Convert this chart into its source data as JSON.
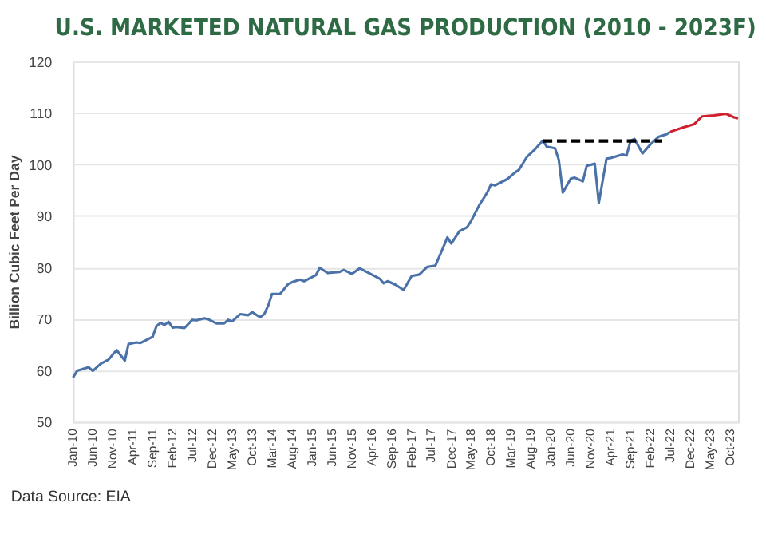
{
  "chart_data": {
    "type": "line",
    "title": "U.S. MARKETED NATURAL GAS PRODUCTION (2010 - 2023F)",
    "ylabel": "Billion Cubic Feet Per Day",
    "annotations": [
      "Data Source: EIA"
    ],
    "ylim": [
      50,
      120
    ],
    "yticks": [
      50,
      60,
      70,
      80,
      90,
      100,
      110,
      120
    ],
    "grid": "y",
    "marker": "none",
    "line_style": "solid",
    "xlim": [
      "2010-01",
      "2023-12"
    ],
    "xticks": [
      {
        "value": "2010-01",
        "label": "Jan-10"
      },
      {
        "value": "2010-06",
        "label": "Jun-10"
      },
      {
        "value": "2010-11",
        "label": "Nov-10"
      },
      {
        "value": "2011-04",
        "label": "Apr-11"
      },
      {
        "value": "2011-09",
        "label": "Sep-11"
      },
      {
        "value": "2012-02",
        "label": "Feb-12"
      },
      {
        "value": "2012-07",
        "label": "Jul-12"
      },
      {
        "value": "2012-12",
        "label": "Dec-12"
      },
      {
        "value": "2013-05",
        "label": "May-13"
      },
      {
        "value": "2013-10",
        "label": "Oct-13"
      },
      {
        "value": "2014-03",
        "label": "Mar-14"
      },
      {
        "value": "2014-08",
        "label": "Aug-14"
      },
      {
        "value": "2015-01",
        "label": "Jan-15"
      },
      {
        "value": "2015-06",
        "label": "Jun-15"
      },
      {
        "value": "2015-11",
        "label": "Nov-15"
      },
      {
        "value": "2016-04",
        "label": "Apr-16"
      },
      {
        "value": "2016-09",
        "label": "Sep-16"
      },
      {
        "value": "2017-02",
        "label": "Feb-17"
      },
      {
        "value": "2017-07",
        "label": "Jul-17"
      },
      {
        "value": "2017-12",
        "label": "Dec-17"
      },
      {
        "value": "2018-05",
        "label": "May-18"
      },
      {
        "value": "2018-10",
        "label": "Oct-18"
      },
      {
        "value": "2019-03",
        "label": "Mar-19"
      },
      {
        "value": "2019-08",
        "label": "Aug-19"
      },
      {
        "value": "2020-01",
        "label": "Jan-20"
      },
      {
        "value": "2020-06",
        "label": "Jun-20"
      },
      {
        "value": "2020-11",
        "label": "Nov-20"
      },
      {
        "value": "2021-04",
        "label": "Apr-21"
      },
      {
        "value": "2021-09",
        "label": "Sep-21"
      },
      {
        "value": "2022-02",
        "label": "Feb-22"
      },
      {
        "value": "2022-07",
        "label": "Jul-22"
      },
      {
        "value": "2022-12",
        "label": "Dec-22"
      },
      {
        "value": "2023-05",
        "label": "May-23"
      },
      {
        "value": "2023-10",
        "label": "Oct-23"
      }
    ],
    "series": [
      {
        "color": "#4a72a8",
        "x": [
          "2010-01",
          "2010-02",
          "2010-05",
          "2010-06",
          "2010-08",
          "2010-10",
          "2010-11",
          "2010-12",
          "2011-02",
          "2011-03",
          "2011-05",
          "2011-06",
          "2011-08",
          "2011-09",
          "2011-10",
          "2011-11",
          "2011-12",
          "2012-01",
          "2012-02",
          "2012-03",
          "2012-05",
          "2012-07",
          "2012-08",
          "2012-10",
          "2012-11",
          "2013-01",
          "2013-03",
          "2013-04",
          "2013-05",
          "2013-07",
          "2013-09",
          "2013-10",
          "2013-12",
          "2014-01",
          "2014-02",
          "2014-03",
          "2014-05",
          "2014-07",
          "2014-08",
          "2014-10",
          "2014-11",
          "2015-02",
          "2015-03",
          "2015-05",
          "2015-08",
          "2015-09",
          "2015-11",
          "2016-01",
          "2016-04",
          "2016-06",
          "2016-07",
          "2016-08",
          "2016-10",
          "2016-12",
          "2017-02",
          "2017-04",
          "2017-06",
          "2017-08",
          "2017-10",
          "2017-11",
          "2017-12",
          "2018-02",
          "2018-04",
          "2018-05",
          "2018-07",
          "2018-09",
          "2018-10",
          "2018-11",
          "2019-02",
          "2019-04",
          "2019-05",
          "2019-07",
          "2019-09",
          "2019-11",
          "2019-12",
          "2020-02",
          "2020-03",
          "2020-04",
          "2020-06",
          "2020-07",
          "2020-09",
          "2020-10",
          "2020-12",
          "2021-01",
          "2021-03",
          "2021-04",
          "2021-07",
          "2021-08",
          "2021-09",
          "2021-10",
          "2021-12",
          "2022-02",
          "2022-04",
          "2022-06",
          "2022-07"
        ],
        "values": [
          58.6,
          59.9,
          60.6,
          59.9,
          61.3,
          62.1,
          63.1,
          63.9,
          61.9,
          65.1,
          65.4,
          65.3,
          66.1,
          66.5,
          68.6,
          69.2,
          68.8,
          69.4,
          68.3,
          68.4,
          68.2,
          69.8,
          69.7,
          70.1,
          69.9,
          69.1,
          69.1,
          69.8,
          69.5,
          70.9,
          70.7,
          71.3,
          70.3,
          70.9,
          72.6,
          74.8,
          74.8,
          76.7,
          77.1,
          77.6,
          77.3,
          78.5,
          79.9,
          78.9,
          79.1,
          79.5,
          78.7,
          79.8,
          78.6,
          77.8,
          76.9,
          77.3,
          76.6,
          75.6,
          78.3,
          78.6,
          80.1,
          80.3,
          83.9,
          85.8,
          84.6,
          87.0,
          87.8,
          89.0,
          92.0,
          94.5,
          96.1,
          95.9,
          97.1,
          98.4,
          98.9,
          101.4,
          102.9,
          104.6,
          103.4,
          103.1,
          100.9,
          94.5,
          97.2,
          97.4,
          96.7,
          99.7,
          100.1,
          92.5,
          101.1,
          101.2,
          101.9,
          101.7,
          104.6,
          104.9,
          102.1,
          103.9,
          105.3,
          105.8,
          106.3
        ]
      },
      {
        "color": "#d0202e",
        "x": [
          "2022-07",
          "2022-10",
          "2023-01",
          "2023-03",
          "2023-06",
          "2023-09",
          "2023-11",
          "2023-12"
        ],
        "values": [
          106.3,
          107.1,
          107.8,
          109.3,
          109.5,
          109.8,
          109.1,
          108.9
        ]
      },
      {
        "color": "#000000",
        "line_style": "dashed",
        "x": [
          "2019-11",
          "2022-05"
        ],
        "values": [
          104.5,
          104.5
        ]
      }
    ]
  }
}
